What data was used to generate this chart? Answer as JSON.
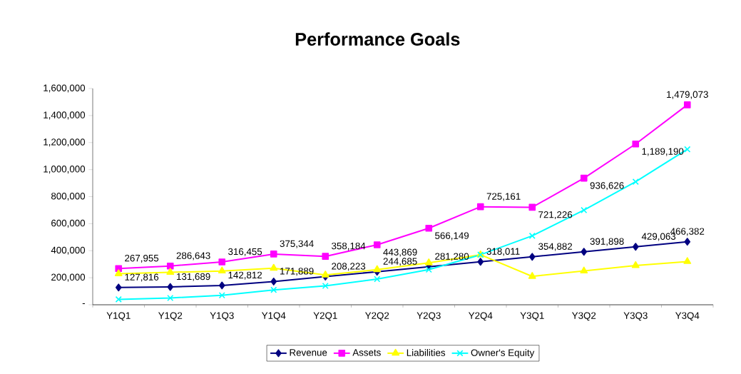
{
  "chart_data": {
    "type": "line",
    "title": "Performance Goals",
    "categories": [
      "Y1Q1",
      "Y1Q2",
      "Y1Q3",
      "Y1Q4",
      "Y2Q1",
      "Y2Q2",
      "Y2Q3",
      "Y2Q4",
      "Y3Q1",
      "Y3Q2",
      "Y3Q3",
      "Y3Q4"
    ],
    "series": [
      {
        "name": "Revenue",
        "color": "#000080",
        "marker": "diamond",
        "values": [
          127816,
          131689,
          142812,
          171889,
          208223,
          244685,
          281280,
          318011,
          354882,
          391898,
          429063,
          466382
        ],
        "value_labels": [
          "127,816",
          "131,689",
          "142,812",
          "171,889",
          "208,223",
          "244,685",
          "281,280",
          "318,011",
          "354,882",
          "391,898",
          "429,063",
          "466,382"
        ]
      },
      {
        "name": "Assets",
        "color": "#ff00ff",
        "marker": "square",
        "values": [
          267955,
          286643,
          316455,
          375344,
          358184,
          443869,
          566149,
          725161,
          721226,
          936626,
          1189190,
          1479073
        ],
        "value_labels": [
          "267,955",
          "286,643",
          "316,455",
          "375,344",
          "358,184",
          "443,869",
          "566,149",
          "725,161",
          "721,226",
          "936,626",
          "1,189,190",
          "1,479,073"
        ]
      },
      {
        "name": "Liabilities",
        "color": "#ffff00",
        "marker": "triangle",
        "values": [
          230000,
          240000,
          250000,
          270000,
          220000,
          260000,
          310000,
          370000,
          210000,
          250000,
          290000,
          320000
        ]
      },
      {
        "name": "Owner's Equity",
        "color": "#00ffff",
        "marker": "cross",
        "values": [
          40000,
          50000,
          70000,
          110000,
          140000,
          190000,
          260000,
          370000,
          510000,
          700000,
          910000,
          1150000
        ]
      }
    ],
    "ylim": [
      0,
      1600000
    ],
    "yticks": [
      {
        "value": 0,
        "label": "-"
      },
      {
        "value": 200000,
        "label": "200,000"
      },
      {
        "value": 400000,
        "label": "400,000"
      },
      {
        "value": 600000,
        "label": "600,000"
      },
      {
        "value": 800000,
        "label": "800,000"
      },
      {
        "value": 1000000,
        "label": "1,000,000"
      },
      {
        "value": 1200000,
        "label": "1,200,000"
      },
      {
        "value": 1400000,
        "label": "1,400,000"
      },
      {
        "value": 1600000,
        "label": "1,600,000"
      }
    ],
    "grid": false,
    "legend": "bottom",
    "line_style": "solid"
  }
}
